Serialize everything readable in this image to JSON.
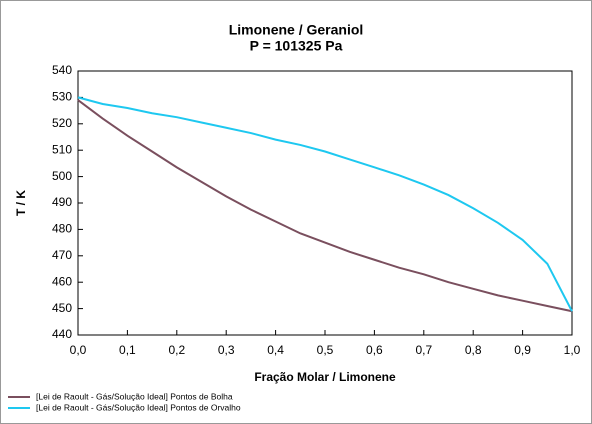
{
  "chart_data": {
    "type": "line",
    "title": "Limonene / Geraniol",
    "subtitle": "P = 101325 Pa",
    "x_label": "Fração Molar / Limonene",
    "y_label": "T / K",
    "x": [
      0,
      0.05,
      0.1,
      0.15,
      0.2,
      0.25,
      0.3,
      0.35,
      0.4,
      0.45,
      0.5,
      0.55,
      0.6,
      0.65,
      0.7,
      0.75,
      0.8,
      0.85,
      0.9,
      0.95,
      1
    ],
    "series": [
      {
        "name": "[Lei de Raoult - Gás/Solução Ideal] Pontos de Bolha",
        "color": "#7a4f5e",
        "values": [
          529,
          522,
          515.5,
          509.5,
          503.5,
          498,
          492.5,
          487.5,
          483,
          478.5,
          475,
          471.5,
          468.5,
          465.5,
          463,
          460,
          457.5,
          455,
          453,
          451,
          449
        ]
      },
      {
        "name": "[Lei de Raoult - Gás/Solução Ideal] Pontos de Orvalho",
        "color": "#1ec8f0",
        "values": [
          530,
          527.5,
          526,
          524,
          522.5,
          520.5,
          518.5,
          516.5,
          514,
          512,
          509.5,
          506.5,
          503.5,
          500.5,
          497,
          493,
          488,
          482.5,
          476,
          467,
          449
        ]
      }
    ],
    "xlim": [
      0,
      1
    ],
    "xticks": [
      {
        "value": 0,
        "label": "0,0"
      },
      {
        "value": 0.1,
        "label": "0,1"
      },
      {
        "value": 0.2,
        "label": "0,2"
      },
      {
        "value": 0.3,
        "label": "0,3"
      },
      {
        "value": 0.4,
        "label": "0,4"
      },
      {
        "value": 0.5,
        "label": "0,5"
      },
      {
        "value": 0.6,
        "label": "0,6"
      },
      {
        "value": 0.7,
        "label": "0,7"
      },
      {
        "value": 0.8,
        "label": "0,8"
      },
      {
        "value": 0.9,
        "label": "0,9"
      },
      {
        "value": 1,
        "label": "1,0"
      }
    ],
    "ylim": [
      440,
      540
    ],
    "yticks": [
      440,
      450,
      460,
      470,
      480,
      490,
      500,
      510,
      520,
      530,
      540
    ],
    "grid": false,
    "legend": "bottom-left"
  }
}
